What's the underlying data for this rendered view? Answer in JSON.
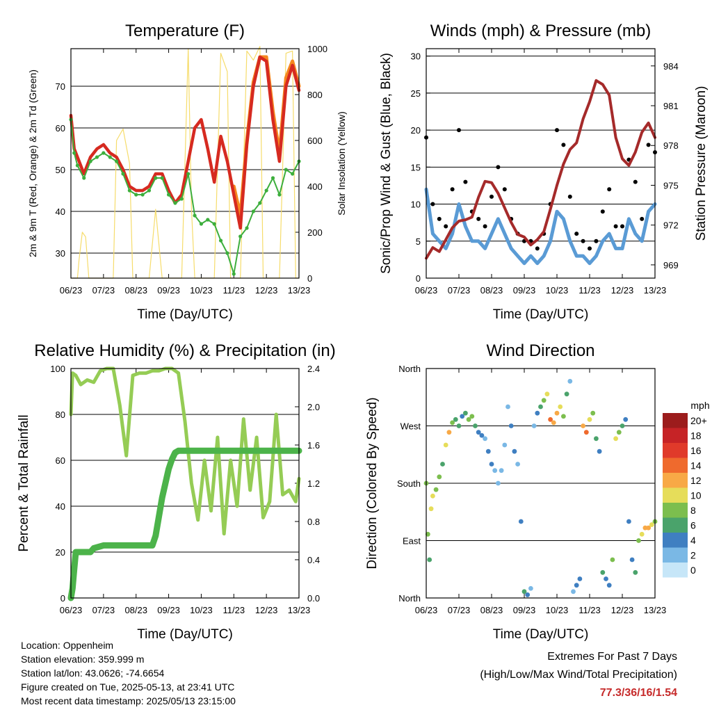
{
  "chart_data": [
    {
      "type": "line",
      "title": "Temperature (F)",
      "xlabel": "Time (Day/UTC)",
      "ylabel": "2m & 9m T (Red, Orange) & 2m Td (Green)",
      "ylabel_right": "Solar Insolation (Yellow)",
      "x_ticks": [
        "06/23",
        "07/23",
        "08/23",
        "09/23",
        "10/23",
        "11/23",
        "12/23",
        "13/23"
      ],
      "ylim": [
        24,
        79
      ],
      "y_ticks": [
        30,
        40,
        50,
        60,
        70
      ],
      "ylim_right": [
        0,
        1000
      ],
      "y_ticks_right": [
        0,
        200,
        400,
        600,
        800,
        1000
      ],
      "grid": true,
      "series": [
        {
          "name": "2m T",
          "color": "#d62a20",
          "x": [
            6.0,
            6.1,
            6.2,
            6.4,
            6.6,
            6.8,
            7.0,
            7.2,
            7.4,
            7.6,
            7.8,
            8.0,
            8.2,
            8.4,
            8.6,
            8.8,
            9.0,
            9.2,
            9.4,
            9.6,
            9.8,
            10.0,
            10.2,
            10.4,
            10.6,
            10.8,
            11.0,
            11.2,
            11.4,
            11.6,
            11.8,
            12.0,
            12.2,
            12.4,
            12.6,
            12.8,
            13.0
          ],
          "y": [
            63,
            55,
            53,
            49,
            53,
            55,
            56,
            54,
            53,
            50,
            46,
            45,
            45,
            46,
            49,
            49,
            45,
            42,
            44,
            52,
            60,
            62,
            55,
            47,
            58,
            52,
            44,
            36,
            56,
            70,
            77,
            76,
            62,
            52,
            70,
            75,
            69
          ]
        },
        {
          "name": "9m T",
          "color": "#f5871f",
          "x": [
            11.0,
            11.2,
            11.4,
            11.6,
            11.8,
            12.0,
            12.2,
            12.4,
            12.6,
            12.8,
            13.0
          ],
          "y": [
            46,
            39,
            57,
            71,
            77,
            77,
            64,
            54,
            72,
            76,
            70
          ]
        },
        {
          "name": "2m Td",
          "color": "#3cae3c",
          "x": [
            6.0,
            6.1,
            6.2,
            6.4,
            6.6,
            6.8,
            7.0,
            7.2,
            7.4,
            7.6,
            7.8,
            8.0,
            8.2,
            8.4,
            8.6,
            8.8,
            9.0,
            9.2,
            9.4,
            9.6,
            9.8,
            10.0,
            10.2,
            10.4,
            10.6,
            10.8,
            11.0,
            11.2,
            11.4,
            11.6,
            11.8,
            12.0,
            12.2,
            12.4,
            12.6,
            12.8,
            13.0
          ],
          "y": [
            62,
            54,
            51,
            48,
            52,
            53,
            54,
            53,
            52,
            49,
            45,
            44,
            44,
            45,
            48,
            48,
            44,
            42,
            43,
            49,
            39,
            37,
            38,
            37,
            33,
            30,
            25,
            34,
            36,
            40,
            42,
            45,
            48,
            44,
            50,
            49,
            52
          ]
        },
        {
          "name": "Solar Insolation",
          "color": "#f6dc6b",
          "axis": "right",
          "x": [
            6.0,
            6.1,
            6.2,
            6.25,
            6.35,
            6.45,
            6.55,
            6.6,
            6.7,
            7.0,
            7.3,
            7.4,
            7.6,
            7.8,
            7.9,
            8.0,
            8.2,
            8.4,
            8.6,
            8.8,
            8.9,
            9.0,
            9.2,
            9.4,
            9.6,
            9.7,
            9.8,
            10.0,
            10.2,
            10.4,
            10.6,
            10.8,
            10.9,
            11.0,
            11.1,
            11.2,
            11.4,
            11.6,
            11.8,
            11.9,
            12.0,
            12.2,
            12.4,
            12.6,
            12.8,
            12.9,
            13.0
          ],
          "y": [
            0,
            0,
            0,
            80,
            200,
            180,
            0,
            0,
            0,
            0,
            0,
            600,
            650,
            500,
            0,
            0,
            0,
            0,
            300,
            0,
            0,
            0,
            0,
            0,
            1000,
            300,
            0,
            0,
            0,
            0,
            980,
            900,
            0,
            0,
            0,
            0,
            990,
            950,
            1010,
            0,
            0,
            0,
            0,
            980,
            990,
            0,
            0
          ]
        }
      ]
    },
    {
      "type": "line",
      "title": "Winds (mph) & Pressure (mb)",
      "xlabel": "Time (Day/UTC)",
      "ylabel": "Sonic/Prop Wind & Gust (Blue, Black)",
      "ylabel_right": "Station Pressure (Maroon)",
      "x_ticks": [
        "06/23",
        "07/23",
        "08/23",
        "09/23",
        "10/23",
        "11/23",
        "12/23",
        "13/23"
      ],
      "ylim": [
        0,
        31
      ],
      "y_ticks": [
        0,
        5,
        10,
        15,
        20,
        25,
        30
      ],
      "ylim_right": [
        968.0,
        985.3
      ],
      "y_ticks_right": [
        969,
        972,
        975,
        978,
        981,
        984
      ],
      "grid": true,
      "series": [
        {
          "name": "Wind",
          "color": "#5a9bd5",
          "x": [
            6.0,
            6.2,
            6.4,
            6.6,
            6.8,
            7.0,
            7.2,
            7.4,
            7.6,
            7.8,
            8.0,
            8.2,
            8.4,
            8.6,
            8.8,
            9.0,
            9.2,
            9.4,
            9.6,
            9.8,
            10.0,
            10.2,
            10.4,
            10.6,
            10.8,
            11.0,
            11.2,
            11.4,
            11.6,
            11.8,
            12.0,
            12.2,
            12.4,
            12.6,
            12.8,
            13.0
          ],
          "y": [
            12,
            6,
            5,
            4,
            6,
            10,
            7,
            5,
            5,
            4,
            6,
            8,
            6,
            4,
            3,
            2,
            3,
            2,
            3,
            5,
            9,
            8,
            5,
            3,
            3,
            2,
            3,
            5,
            6,
            4,
            4,
            8,
            6,
            5,
            9,
            10
          ]
        },
        {
          "name": "Gust",
          "color": "#000000",
          "x": [
            6.0,
            6.2,
            6.4,
            6.6,
            6.8,
            7.0,
            7.2,
            7.4,
            7.6,
            7.8,
            8.0,
            8.2,
            8.4,
            8.6,
            8.8,
            9.0,
            9.2,
            9.4,
            9.6,
            9.8,
            10.0,
            10.2,
            10.4,
            10.6,
            10.8,
            11.0,
            11.2,
            11.4,
            11.6,
            11.8,
            12.0,
            12.2,
            12.4,
            12.6,
            12.8,
            13.0
          ],
          "y": [
            19,
            10,
            8,
            7,
            12,
            20,
            13,
            9,
            8,
            7,
            11,
            15,
            12,
            8,
            6,
            5,
            5,
            4,
            6,
            10,
            20,
            18,
            11,
            6,
            5,
            4,
            5,
            9,
            12,
            7,
            7,
            16,
            13,
            8,
            18,
            17
          ]
        },
        {
          "name": "Pressure",
          "color": "#a52a2a",
          "axis": "right",
          "x": [
            6.0,
            6.2,
            6.4,
            6.6,
            6.8,
            7.0,
            7.2,
            7.4,
            7.6,
            7.8,
            8.0,
            8.2,
            8.4,
            8.6,
            8.8,
            9.0,
            9.2,
            9.4,
            9.6,
            9.8,
            10.0,
            10.2,
            10.4,
            10.6,
            10.8,
            11.0,
            11.2,
            11.4,
            11.6,
            11.8,
            12.0,
            12.2,
            12.4,
            12.6,
            12.8,
            13.0
          ],
          "y": [
            969.5,
            970.3,
            970.0,
            970.9,
            971.8,
            972.3,
            972.4,
            972.6,
            974.1,
            975.3,
            975.2,
            974.4,
            973.3,
            972.2,
            971.3,
            971.1,
            970.5,
            970.9,
            971.5,
            973.2,
            975.0,
            976.6,
            977.7,
            978.2,
            980.0,
            981.3,
            982.9,
            982.6,
            981.8,
            978.6,
            977.0,
            976.5,
            977.5,
            979.0,
            979.7,
            978.6
          ]
        }
      ]
    },
    {
      "type": "line",
      "title": "Relative Humidity (%) & Precipitation (in)",
      "xlabel": "Time (Day/UTC)",
      "ylabel": "Percent & Total Rainfall",
      "x_ticks": [
        "06/23",
        "07/23",
        "08/23",
        "09/23",
        "10/23",
        "11/23",
        "12/23",
        "13/23"
      ],
      "ylim": [
        0,
        100
      ],
      "y_ticks": [
        0,
        20,
        40,
        60,
        80,
        100
      ],
      "ylim_right": [
        0,
        2.4
      ],
      "y_ticks_right": [
        "0.0",
        "0.4",
        "0.8",
        "1.2",
        "1.6",
        "2.0",
        "2.4"
      ],
      "grid": true,
      "series": [
        {
          "name": "Relative Humidity",
          "color": "#95cc55",
          "x": [
            6.0,
            6.05,
            6.15,
            6.3,
            6.5,
            6.7,
            6.9,
            7.1,
            7.3,
            7.5,
            7.7,
            7.9,
            8.1,
            8.3,
            8.5,
            8.7,
            8.9,
            9.1,
            9.3,
            9.5,
            9.7,
            9.9,
            10.1,
            10.3,
            10.5,
            10.7,
            10.9,
            11.1,
            11.3,
            11.5,
            11.7,
            11.9,
            12.1,
            12.3,
            12.5,
            12.7,
            12.9,
            13.0
          ],
          "y": [
            80,
            98,
            97,
            93,
            95,
            94,
            99,
            100,
            100,
            84,
            62,
            97,
            98,
            98,
            99,
            99,
            100,
            100,
            98,
            77,
            50,
            34,
            60,
            38,
            70,
            28,
            60,
            40,
            78,
            47,
            70,
            35,
            42,
            80,
            45,
            47,
            42,
            52
          ]
        },
        {
          "name": "Total Precipitation",
          "color": "#4cb34a",
          "axis": "right",
          "x": [
            6.0,
            6.05,
            6.1,
            6.15,
            6.3,
            6.6,
            6.7,
            7.0,
            7.5,
            8.0,
            8.5,
            8.6,
            8.7,
            8.8,
            8.9,
            9.0,
            9.1,
            9.2,
            9.3,
            9.5,
            10.0,
            10.5,
            11.0,
            11.5,
            12.0,
            12.5,
            13.0
          ],
          "y": [
            0,
            0.1,
            0.3,
            0.48,
            0.48,
            0.48,
            0.52,
            0.55,
            0.55,
            0.55,
            0.55,
            0.65,
            0.85,
            1.05,
            1.2,
            1.35,
            1.45,
            1.52,
            1.54,
            1.54,
            1.54,
            1.54,
            1.54,
            1.54,
            1.54,
            1.54,
            1.54
          ]
        }
      ]
    },
    {
      "type": "scatter",
      "title": "Wind Direction",
      "xlabel": "Time (Day/UTC)",
      "ylabel": "Direction (Colored By Speed)",
      "x_ticks": [
        "06/23",
        "07/23",
        "08/23",
        "09/23",
        "10/23",
        "11/23",
        "12/23",
        "13/23"
      ],
      "y_ticks": [
        "North",
        "East",
        "South",
        "West",
        "North"
      ],
      "ylim": [
        0,
        360
      ],
      "grid": true,
      "colorbar": {
        "label": "mph",
        "levels": [
          "20+",
          "18",
          "16",
          "14",
          "12",
          "10",
          "8",
          "6",
          "4",
          "2",
          "0"
        ],
        "colors": [
          "#9c1c1c",
          "#c62326",
          "#e03a2a",
          "#ef6a2d",
          "#f8a946",
          "#e6dd5a",
          "#7cbe4e",
          "#4aa36b",
          "#3f7fc1",
          "#7ab8e5",
          "#c6e6f8"
        ]
      },
      "points": {
        "x": [
          6.0,
          6.05,
          6.1,
          6.15,
          6.2,
          6.3,
          6.4,
          6.5,
          6.6,
          6.7,
          6.8,
          6.9,
          7.0,
          7.1,
          7.2,
          7.3,
          7.4,
          7.5,
          7.6,
          7.7,
          7.8,
          7.9,
          8.0,
          8.1,
          8.2,
          8.3,
          8.4,
          8.5,
          8.6,
          8.7,
          8.8,
          8.9,
          9.0,
          9.1,
          9.2,
          9.3,
          9.4,
          9.5,
          9.6,
          9.7,
          9.8,
          9.9,
          10.0,
          10.1,
          10.2,
          10.3,
          10.4,
          10.5,
          10.6,
          10.7,
          10.8,
          10.9,
          11.0,
          11.1,
          11.2,
          11.3,
          11.4,
          11.5,
          11.6,
          11.7,
          11.8,
          11.9,
          12.0,
          12.1,
          12.2,
          12.3,
          12.4,
          12.5,
          12.6,
          12.7,
          12.8,
          12.9,
          13.0
        ],
        "y": [
          180,
          100,
          60,
          140,
          160,
          170,
          190,
          210,
          240,
          260,
          275,
          280,
          270,
          285,
          290,
          280,
          285,
          270,
          260,
          255,
          250,
          230,
          210,
          200,
          180,
          200,
          240,
          300,
          270,
          230,
          210,
          120,
          10,
          5,
          15,
          270,
          290,
          300,
          310,
          320,
          280,
          275,
          290,
          300,
          285,
          320,
          340,
          10,
          20,
          30,
          270,
          260,
          280,
          290,
          250,
          230,
          40,
          30,
          20,
          60,
          250,
          260,
          270,
          280,
          120,
          60,
          40,
          90,
          100,
          110,
          110,
          115,
          120
        ],
        "speed": [
          8,
          8,
          6,
          10,
          10,
          8,
          8,
          6,
          10,
          12,
          8,
          6,
          6,
          4,
          6,
          8,
          8,
          6,
          4,
          4,
          2,
          4,
          4,
          2,
          2,
          2,
          2,
          2,
          4,
          4,
          2,
          4,
          6,
          4,
          2,
          2,
          4,
          6,
          8,
          10,
          14,
          12,
          12,
          10,
          8,
          6,
          2,
          2,
          4,
          4,
          12,
          14,
          10,
          8,
          6,
          4,
          6,
          4,
          4,
          8,
          10,
          8,
          6,
          4,
          4,
          4,
          6,
          8,
          10,
          12,
          12,
          10,
          8
        ]
      }
    }
  ],
  "footer": {
    "location": "Location: Oppenheim",
    "elevation": "Station elevation: 359.999 m",
    "latlon": "Station lat/lon: 43.0626; -74.6654",
    "created": "Figure created on Tue, 2025-05-13, at 23:41 UTC",
    "recent": "Most recent data timestamp: 2025/05/13 23:15:00"
  },
  "extremes": {
    "title": "Extremes For Past 7 Days",
    "subtitle": "(High/Low/Max Wind/Total Precipitation)",
    "values": "77.3/36/16/1.54"
  }
}
